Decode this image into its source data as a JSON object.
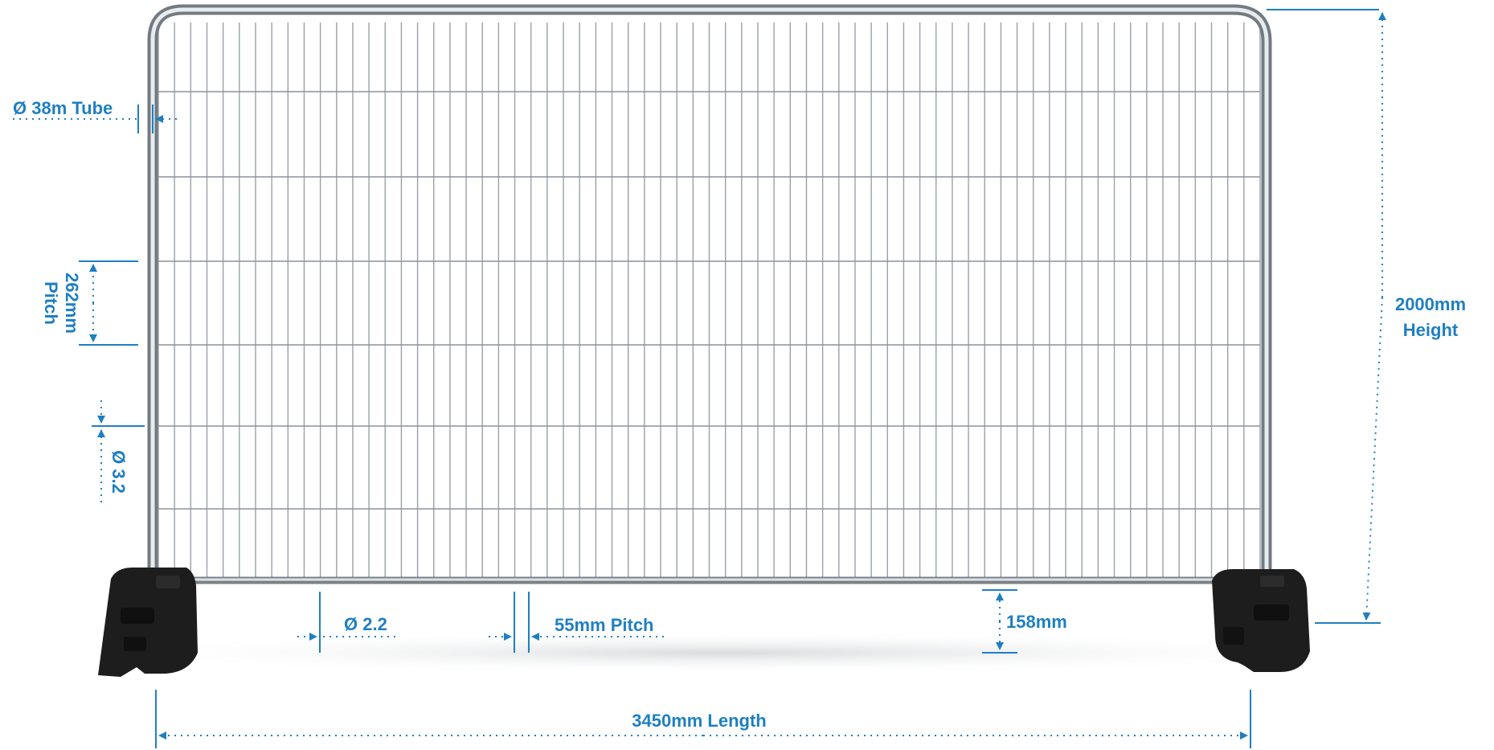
{
  "colors": {
    "accent": "#1f7fc1",
    "frame": "#8f979e",
    "frame_highlight": "#e4e8eb",
    "mesh": "#9aa1a7",
    "foot": "#1e1e1e",
    "background": "#ffffff"
  },
  "icons": {
    "diameter_symbol": "Ø",
    "arrow": "arrow-icon"
  },
  "annotations": {
    "tube": "Ø 38m Tube",
    "pitch_vertical_value": "262mm",
    "pitch_vertical_word": "Pitch",
    "wire_diameter_horizontal": "Ø 3.2",
    "wire_diameter_vertical": "Ø 2.2",
    "pitch_horizontal": "55mm Pitch",
    "ground_clearance": "158mm",
    "height_value": "2000mm",
    "height_word": "Height",
    "length": "3450mm Length"
  }
}
